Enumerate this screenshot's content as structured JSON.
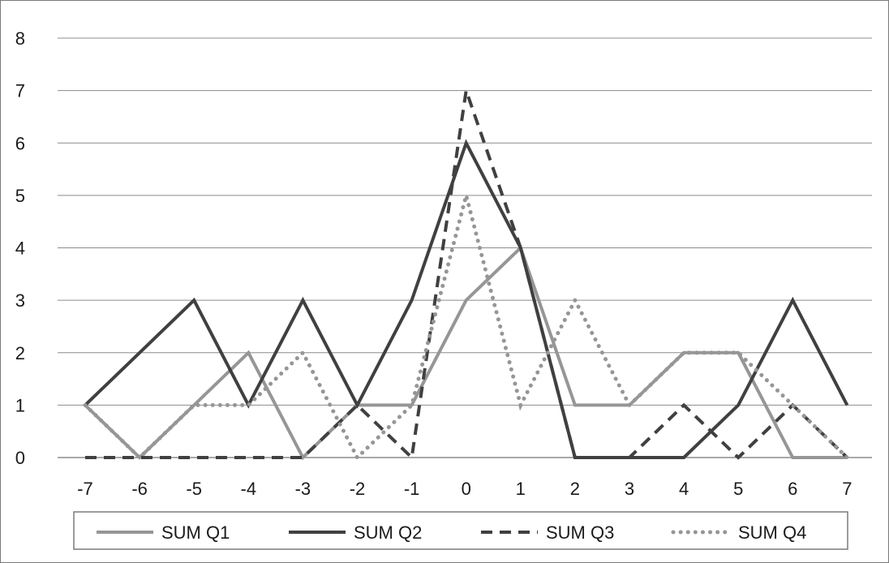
{
  "chart_data": {
    "type": "line",
    "title": "",
    "xlabel": "",
    "ylabel": "",
    "x": [
      -7,
      -6,
      -5,
      -4,
      -3,
      -2,
      -1,
      0,
      1,
      2,
      3,
      4,
      5,
      6,
      7
    ],
    "x_tick_labels": [
      "-7",
      "-6",
      "-5",
      "-4",
      "-3",
      "-2",
      "-1",
      "0",
      "1",
      "2",
      "3",
      "4",
      "5",
      "6",
      "7"
    ],
    "ylim": [
      0,
      8
    ],
    "y_ticks": [
      0,
      1,
      2,
      3,
      4,
      5,
      6,
      7,
      8
    ],
    "y_tick_labels": [
      "0",
      "1",
      "2",
      "3",
      "4",
      "5",
      "6",
      "7",
      "8"
    ],
    "grid": "horizontal",
    "legend_position": "bottom",
    "series": [
      {
        "name": "SUM Q1",
        "color": "#969696",
        "style": "solid",
        "values": [
          1,
          0,
          1,
          2,
          0,
          1,
          1,
          3,
          4,
          1,
          1,
          2,
          2,
          0,
          0
        ]
      },
      {
        "name": "SUM Q2",
        "color": "#404040",
        "style": "solid",
        "values": [
          1,
          2,
          3,
          1,
          3,
          1,
          3,
          6,
          4,
          0,
          0,
          0,
          1,
          3,
          1
        ]
      },
      {
        "name": "SUM Q3",
        "color": "#404040",
        "style": "dashed",
        "values": [
          0,
          0,
          0,
          0,
          0,
          1,
          0,
          7,
          4,
          0,
          0,
          1,
          0,
          1,
          0
        ]
      },
      {
        "name": "SUM Q4",
        "color": "#969696",
        "style": "dotted",
        "values": [
          1,
          0,
          1,
          1,
          2,
          0,
          1,
          5,
          1,
          3,
          1,
          2,
          2,
          1,
          0
        ]
      }
    ]
  }
}
